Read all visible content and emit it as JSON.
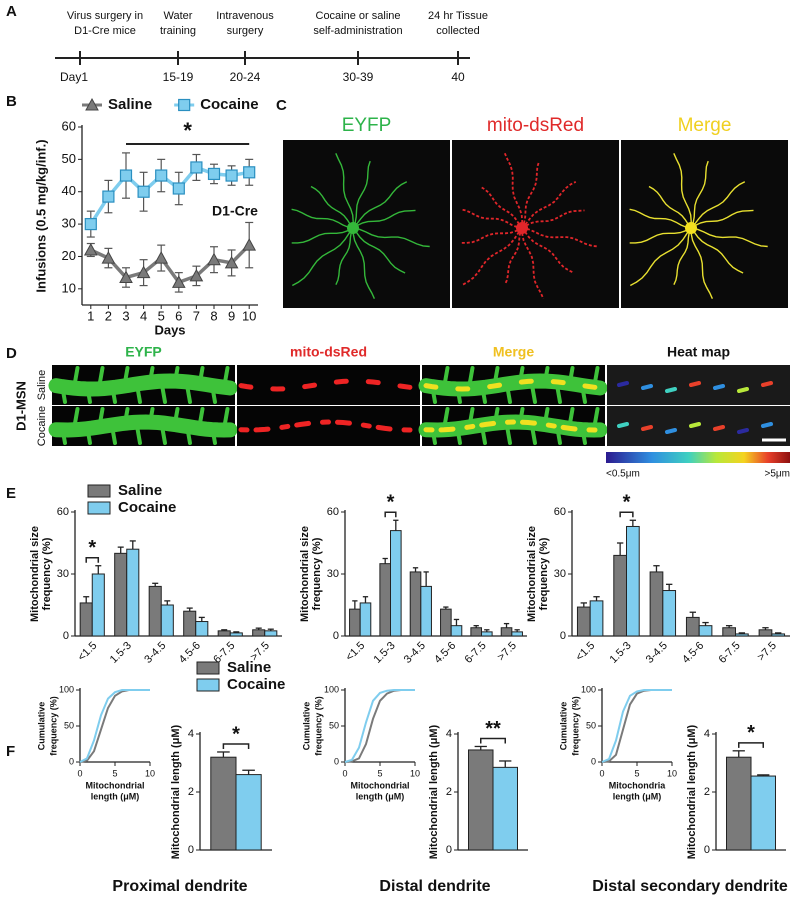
{
  "panel_labels": {
    "a": "A",
    "b": "B",
    "c": "C",
    "d": "D",
    "e": "E",
    "f": "F"
  },
  "timeline": {
    "events": [
      {
        "label": [
          "Virus surgery in",
          "D1-Cre mice"
        ],
        "time": "Day1"
      },
      {
        "label": [
          "Water",
          "training"
        ],
        "time": "15-19"
      },
      {
        "label": [
          "Intravenous",
          "surgery"
        ],
        "time": "20-24"
      },
      {
        "label": [
          "Cocaine or saline",
          "self-administration"
        ],
        "time": "30-39"
      },
      {
        "label": [
          "24 hr Tissue",
          "collected"
        ],
        "time": "40"
      }
    ]
  },
  "image_c": {
    "labels": [
      "EYFP",
      "mito-dsRed",
      "Merge"
    ]
  },
  "image_d": {
    "columns": [
      "EYFP",
      "mito-dsRed",
      "Merge",
      "Heat map"
    ],
    "rows": [
      "Saline",
      "Cocaine"
    ],
    "group": "D1-MSN",
    "scale_min": "<0.5μm",
    "scale_max": ">5μm"
  },
  "chart_data": [
    {
      "type": "line",
      "x": [
        1,
        2,
        3,
        4,
        5,
        6,
        7,
        8,
        9,
        10
      ],
      "xlim": [
        0.5,
        10.5
      ],
      "xticks": [
        1,
        2,
        3,
        4,
        5,
        6,
        7,
        8,
        9,
        10
      ],
      "ylim": [
        5,
        60
      ],
      "yticks": [
        10,
        20,
        30,
        40,
        50,
        60
      ],
      "ylabel": [
        "Infusions (0.5 mg/kg/inf.)"
      ],
      "xlabel": [
        "Days"
      ],
      "significance": "*",
      "label": "D1-Cre",
      "series": [
        {
          "name": "Saline",
          "color": "#7a7a7a",
          "marker": "triangle",
          "values": [
            22,
            19.5,
            13.5,
            15,
            19.5,
            12,
            14,
            19,
            18,
            23.5
          ],
          "errors": [
            2,
            3,
            3,
            4,
            4,
            3,
            3,
            4,
            4,
            7
          ]
        },
        {
          "name": "Cocaine",
          "color": "#7fcdee",
          "marker": "square",
          "values": [
            30,
            38.5,
            45,
            40,
            45,
            41,
            47.5,
            45.5,
            45,
            46
          ],
          "errors": [
            4,
            5,
            7,
            6,
            5,
            5,
            4,
            3,
            3,
            4
          ]
        }
      ]
    },
    {
      "type": "bar",
      "categories": [
        "<1.5",
        "1.5-3",
        "3-4.5",
        "4.5-6",
        "6-7.5",
        ">7.5"
      ],
      "ylim": [
        0,
        60
      ],
      "yticks": [
        0,
        30,
        60
      ],
      "ylabel": [
        "Mitochondrial size",
        "frequency (%)"
      ],
      "significance": "*",
      "series": [
        {
          "name": "Saline",
          "color": "#7a7a7a",
          "values": [
            16,
            40,
            24,
            12,
            2.5,
            3
          ],
          "errors": [
            3,
            3,
            1.5,
            1.5,
            0.5,
            0.8
          ]
        },
        {
          "name": "Cocaine",
          "color": "#7fcdee",
          "values": [
            30,
            42,
            15,
            7,
            1.5,
            2.5
          ],
          "errors": [
            4,
            4,
            2,
            2,
            0.5,
            0.8
          ]
        }
      ]
    },
    {
      "type": "bar",
      "categories": [
        "<1.5",
        "1.5-3",
        "3-4.5",
        "4.5-6",
        "6-7.5",
        ">7.5"
      ],
      "ylim": [
        0,
        60
      ],
      "yticks": [
        0,
        30,
        60
      ],
      "ylabel": [
        "Mitochondrial size",
        "frequency (%)"
      ],
      "significance": "*",
      "series": [
        {
          "color": "#7a7a7a",
          "values": [
            13,
            35,
            31,
            13,
            4,
            4
          ],
          "errors": [
            4,
            2.5,
            2,
            1,
            1,
            2
          ]
        },
        {
          "color": "#7fcdee",
          "values": [
            16,
            51,
            24,
            5,
            2,
            2
          ],
          "errors": [
            3,
            5,
            7,
            3,
            1,
            1
          ]
        }
      ]
    },
    {
      "type": "bar",
      "categories": [
        "<1.5",
        "1.5-3",
        "3-4.5",
        "4.5-6",
        "6-7.5",
        ">7.5"
      ],
      "ylim": [
        0,
        60
      ],
      "yticks": [
        0,
        30,
        60
      ],
      "ylabel": [
        "Mitochondrial size",
        "frequency (%)"
      ],
      "significance": "*",
      "series": [
        {
          "color": "#7a7a7a",
          "values": [
            14,
            39,
            31,
            9,
            4,
            3
          ],
          "errors": [
            2,
            6,
            3,
            2.5,
            1,
            1
          ]
        },
        {
          "color": "#7fcdee",
          "values": [
            17,
            53,
            22,
            5,
            1,
            1
          ],
          "errors": [
            2,
            3,
            3,
            1.5,
            0.5,
            0.5
          ]
        }
      ]
    },
    {
      "type": "line",
      "x": [
        0,
        1,
        2,
        3,
        4,
        5,
        6,
        7,
        8,
        10
      ],
      "xlim": [
        0,
        10
      ],
      "xticks": [
        0,
        5,
        10
      ],
      "ylim": [
        0,
        100
      ],
      "yticks": [
        0,
        50,
        100
      ],
      "ylabel": [
        "Cumulative",
        "frequency (%)"
      ],
      "xlabel": [
        "Mitochondrial",
        "length (μM)"
      ],
      "series": [
        {
          "color": "#7a7a7a",
          "values": [
            0,
            2,
            15,
            45,
            75,
            92,
            98,
            100,
            100,
            100
          ]
        },
        {
          "color": "#7fcdee",
          "values": [
            0,
            5,
            30,
            65,
            88,
            97,
            100,
            100,
            100,
            100
          ]
        }
      ]
    },
    {
      "type": "bar",
      "ylim": [
        0,
        4
      ],
      "yticks": [
        0,
        2,
        4
      ],
      "ylabel": [
        "Mitochondrial length (μM)"
      ],
      "significance": "*",
      "title": "Proximal dendrite",
      "series": [
        {
          "name": "Saline",
          "color": "#7a7a7a",
          "values": [
            3.2
          ],
          "errors": [
            0.18
          ]
        },
        {
          "name": "Cocaine",
          "color": "#7fcdee",
          "values": [
            2.6
          ],
          "errors": [
            0.15
          ]
        }
      ]
    },
    {
      "type": "line",
      "x": [
        0,
        1,
        2,
        3,
        4,
        5,
        6,
        7,
        8,
        10
      ],
      "xlim": [
        0,
        10
      ],
      "xticks": [
        0,
        5,
        10
      ],
      "ylim": [
        0,
        100
      ],
      "yticks": [
        0,
        50,
        100
      ],
      "ylabel": [
        "Cumulative",
        "frequency (%)"
      ],
      "xlabel": [
        "Mitochondrial",
        "length (μM)"
      ],
      "series": [
        {
          "color": "#7a7a7a",
          "values": [
            0,
            1,
            5,
            25,
            60,
            85,
            95,
            99,
            100,
            100
          ]
        },
        {
          "color": "#7fcdee",
          "values": [
            0,
            3,
            20,
            55,
            85,
            96,
            99,
            100,
            100,
            100
          ]
        }
      ]
    },
    {
      "type": "bar",
      "ylim": [
        0,
        4
      ],
      "yticks": [
        0,
        2,
        4
      ],
      "ylabel": [
        "Mitochondrial length (μM)"
      ],
      "significance": "**",
      "title": "Distal dendrite",
      "series": [
        {
          "color": "#7a7a7a",
          "values": [
            3.45
          ],
          "errors": [
            0.12
          ]
        },
        {
          "color": "#7fcdee",
          "values": [
            2.85
          ],
          "errors": [
            0.22
          ]
        }
      ]
    },
    {
      "type": "line",
      "x": [
        0,
        1,
        2,
        3,
        4,
        5,
        6,
        7,
        8,
        10
      ],
      "xlim": [
        0,
        10
      ],
      "xticks": [
        0,
        5,
        10
      ],
      "ylim": [
        0,
        100
      ],
      "yticks": [
        0,
        50,
        100
      ],
      "ylabel": [
        "Cumulative",
        "frequency (%)"
      ],
      "xlabel": [
        "Mitochondria",
        "length (μM)"
      ],
      "series": [
        {
          "color": "#7a7a7a",
          "values": [
            0,
            1,
            10,
            45,
            80,
            95,
            99,
            100,
            100,
            100
          ]
        },
        {
          "color": "#7fcdee",
          "values": [
            0,
            4,
            30,
            70,
            92,
            98,
            100,
            100,
            100,
            100
          ]
        }
      ]
    },
    {
      "type": "bar",
      "ylim": [
        0,
        4
      ],
      "yticks": [
        0,
        2,
        4
      ],
      "ylabel": [
        "Mitochondrial length (μM)"
      ],
      "significance": "*",
      "title": "Distal secondary dendrite",
      "series": [
        {
          "color": "#7a7a7a",
          "values": [
            3.2
          ],
          "errors": [
            0.22
          ]
        },
        {
          "color": "#7fcdee",
          "values": [
            2.55
          ],
          "errors": [
            0.04
          ]
        }
      ]
    }
  ]
}
